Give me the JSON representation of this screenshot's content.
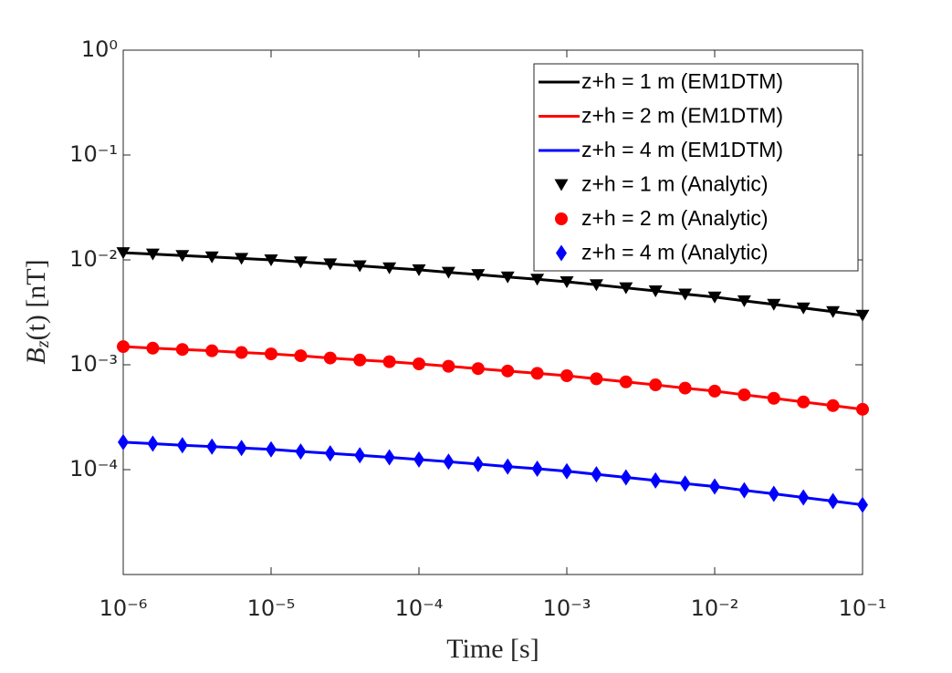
{
  "chart_data": {
    "type": "line",
    "xlabel": "Time [s]",
    "ylabel": [
      "B",
      "z",
      "(t) [nT]"
    ],
    "xscale": "log",
    "yscale": "log",
    "xlim": [
      1e-06,
      0.1
    ],
    "ylim": [
      1e-05,
      1
    ],
    "xticks": [
      {
        "value": 1e-06,
        "label": "10⁻⁶"
      },
      {
        "value": 1e-05,
        "label": "10⁻⁵"
      },
      {
        "value": 0.0001,
        "label": "10⁻⁴"
      },
      {
        "value": 0.001,
        "label": "10⁻³"
      },
      {
        "value": 0.01,
        "label": "10⁻²"
      },
      {
        "value": 0.1,
        "label": "10⁻¹"
      }
    ],
    "yticks": [
      {
        "value": 1,
        "label": "10⁰"
      },
      {
        "value": 0.1,
        "label": "10⁻¹"
      },
      {
        "value": 0.01,
        "label": "10⁻²"
      },
      {
        "value": 0.001,
        "label": "10⁻³"
      },
      {
        "value": 0.0001,
        "label": "10⁻⁴"
      }
    ],
    "legend": "upper right",
    "x": [
      1e-06,
      1.585e-06,
      2.512e-06,
      3.981e-06,
      6.31e-06,
      1e-05,
      1.585e-05,
      2.512e-05,
      3.981e-05,
      6.31e-05,
      0.0001,
      0.0001585,
      0.0002512,
      0.0003981,
      0.000631,
      0.001,
      0.001585,
      0.002512,
      0.003981,
      0.00631,
      0.01,
      0.01585,
      0.02512,
      0.03981,
      0.0631,
      0.1
    ],
    "series": [
      {
        "name": "z+h = 1 m (EM1DTM)",
        "color": "#000000",
        "style": "line",
        "values": [
          0.01172,
          0.01135,
          0.01099,
          0.01067,
          0.01033,
          0.01,
          0.00957,
          0.00916,
          0.00877,
          0.00839,
          0.00804,
          0.00762,
          0.00724,
          0.00687,
          0.00653,
          0.00619,
          0.00579,
          0.00541,
          0.00506,
          0.00472,
          0.00442,
          0.00407,
          0.00377,
          0.00348,
          0.00321,
          0.00296
        ]
      },
      {
        "name": "z+h = 2 m (EM1DTM)",
        "color": "#ff0000",
        "style": "line",
        "values": [
          0.00149,
          0.00144,
          0.0014,
          0.00136,
          0.00131,
          0.00127,
          0.00122,
          0.00116,
          0.00111,
          0.00107,
          0.00102,
          0.000968,
          0.000919,
          0.000872,
          0.000829,
          0.000786,
          0.000735,
          0.000687,
          0.000643,
          0.000599,
          0.000561,
          0.000517,
          0.000479,
          0.000442,
          0.000408,
          0.000376
        ]
      },
      {
        "name": "z+h = 4 m (EM1DTM)",
        "color": "#0000ff",
        "style": "line",
        "values": [
          0.000183,
          0.000177,
          0.000171,
          0.000166,
          0.000161,
          0.000156,
          0.000149,
          0.000143,
          0.000137,
          0.000131,
          0.000125,
          0.000119,
          0.000113,
          0.000107,
          0.000102,
          9.66e-05,
          9.03e-05,
          8.44e-05,
          7.89e-05,
          7.36e-05,
          6.9e-05,
          6.35e-05,
          5.88e-05,
          5.43e-05,
          5.01e-05,
          4.62e-05
        ]
      },
      {
        "name": "z+h = 1 m (Analytic)",
        "color": "#000000",
        "style": "marker",
        "marker": "triangle-down",
        "values": [
          0.01172,
          0.01135,
          0.01099,
          0.01067,
          0.01033,
          0.01,
          0.00957,
          0.00916,
          0.00877,
          0.00839,
          0.00804,
          0.00762,
          0.00724,
          0.00687,
          0.00653,
          0.00619,
          0.00579,
          0.00541,
          0.00506,
          0.00472,
          0.00442,
          0.00407,
          0.00377,
          0.00348,
          0.00321,
          0.00296
        ]
      },
      {
        "name": "z+h = 2 m (Analytic)",
        "color": "#ff0000",
        "style": "marker",
        "marker": "circle",
        "values": [
          0.00149,
          0.00144,
          0.0014,
          0.00136,
          0.00131,
          0.00127,
          0.00122,
          0.00116,
          0.00111,
          0.00107,
          0.00102,
          0.000968,
          0.000919,
          0.000872,
          0.000829,
          0.000786,
          0.000735,
          0.000687,
          0.000643,
          0.000599,
          0.000561,
          0.000517,
          0.000479,
          0.000442,
          0.000408,
          0.000376
        ]
      },
      {
        "name": "z+h = 4 m (Analytic)",
        "color": "#0000ff",
        "style": "marker",
        "marker": "diamond",
        "values": [
          0.000183,
          0.000177,
          0.000171,
          0.000166,
          0.000161,
          0.000156,
          0.000149,
          0.000143,
          0.000137,
          0.000131,
          0.000125,
          0.000119,
          0.000113,
          0.000107,
          0.000102,
          9.66e-05,
          9.03e-05,
          8.44e-05,
          7.89e-05,
          7.36e-05,
          6.9e-05,
          6.35e-05,
          5.88e-05,
          5.43e-05,
          5.01e-05,
          4.62e-05
        ]
      }
    ]
  }
}
